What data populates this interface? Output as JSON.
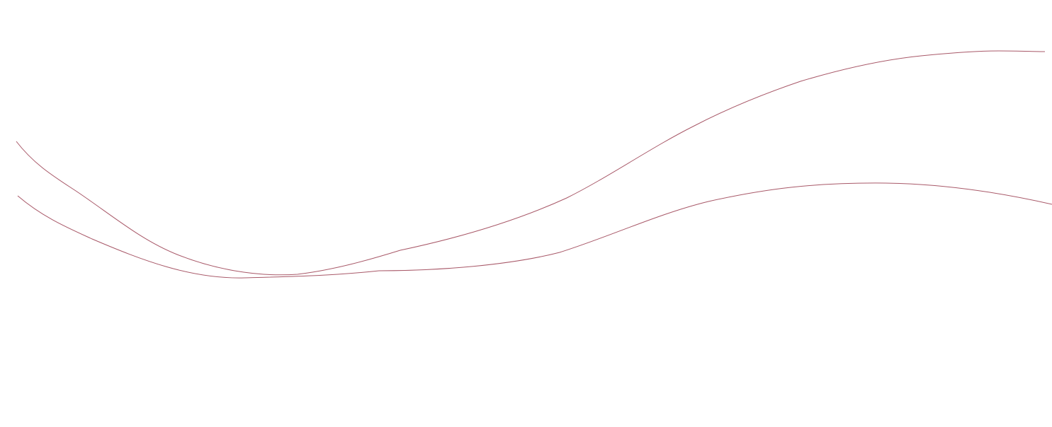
{
  "canvas": {
    "background_color": "#ffffff",
    "line_color": "#a85868",
    "curves": [
      "upper-s-curve",
      "lower-wave-curve"
    ]
  }
}
